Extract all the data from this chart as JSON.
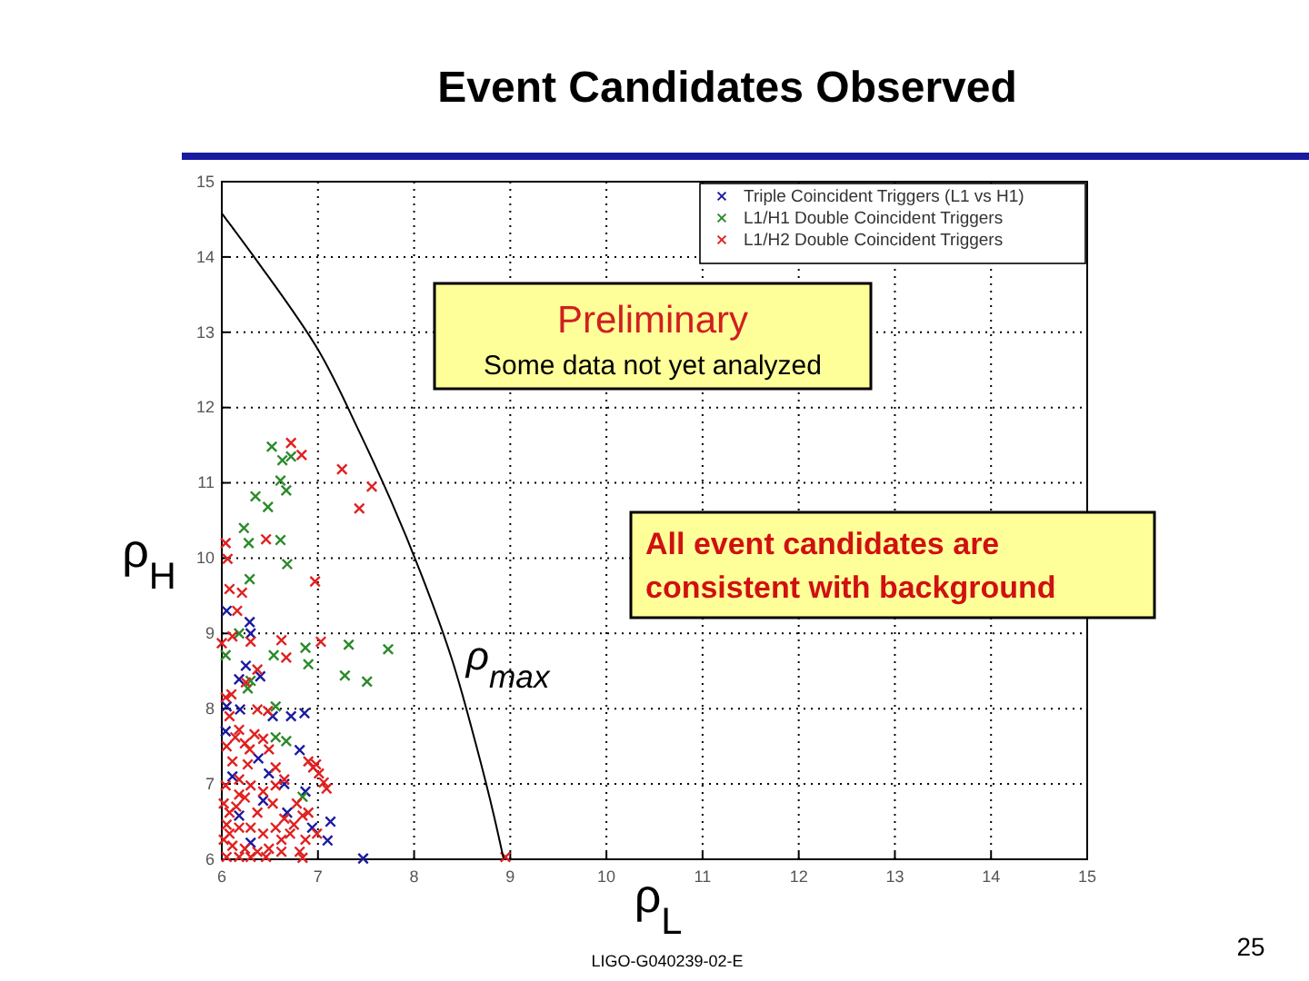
{
  "chart_data": {
    "type": "scatter",
    "title": "Event Candidates Observed",
    "xlabel": "ρ$_{L}$",
    "ylabel": "ρ$_{H}$",
    "xlim": [
      6,
      15
    ],
    "ylim": [
      6,
      15
    ],
    "xticks": [
      6,
      7,
      8,
      9,
      10,
      11,
      12,
      13,
      14,
      15
    ],
    "yticks": [
      6,
      7,
      8,
      9,
      10,
      11,
      12,
      13,
      14,
      15
    ],
    "grid": true,
    "legend": "top right",
    "marker": "cross",
    "annotations": [
      "Preliminary",
      "Some data not yet analyzed",
      "All event candidates are consistent with background",
      "LIGO-G040239-02-E",
      "25"
    ],
    "series": [
      {
        "name": "Triple Coincident Triggers (L1 vs H1)",
        "color": "#1a1aa0",
        "x": [
          6.05,
          6.29,
          6.3,
          6.25,
          6.4,
          6.18,
          6.05,
          6.19,
          6.53,
          6.72,
          6.86,
          6.04,
          6.38,
          6.81,
          6.49,
          6.87,
          7.13,
          7.47,
          7.1,
          6.18,
          6.43,
          6.3,
          6.65,
          6.11,
          6.94,
          6.68
        ],
        "values": [
          9.3,
          9.15,
          9.0,
          8.57,
          8.43,
          8.39,
          8.03,
          7.99,
          7.9,
          7.9,
          7.94,
          7.7,
          7.34,
          7.45,
          7.14,
          6.9,
          6.5,
          6.01,
          6.25,
          6.58,
          6.78,
          6.22,
          7.0,
          7.1,
          6.42,
          6.62
        ]
      },
      {
        "name": "L1/H1 Double Coincident Triggers",
        "color": "#2a8a2a",
        "x": [
          6.52,
          6.63,
          6.72,
          6.61,
          6.67,
          6.35,
          6.48,
          6.23,
          6.28,
          6.61,
          6.68,
          6.29,
          6.18,
          6.54,
          6.87,
          6.9,
          7.32,
          7.73,
          7.28,
          7.51,
          6.27,
          6.3,
          6.04,
          6.56,
          6.56,
          6.67,
          6.84
        ],
        "values": [
          11.48,
          11.3,
          11.35,
          11.03,
          10.9,
          10.82,
          10.68,
          10.4,
          10.2,
          10.24,
          9.92,
          9.72,
          9.0,
          8.71,
          8.81,
          8.59,
          8.85,
          8.79,
          8.44,
          8.36,
          8.27,
          8.37,
          8.71,
          8.03,
          7.62,
          7.57,
          6.83
        ]
      },
      {
        "name": "L1/H2 Double Coincident Triggers",
        "color": "#e02020",
        "x": [
          6.72,
          6.83,
          7.25,
          7.56,
          7.43,
          6.46,
          6.04,
          6.06,
          6.08,
          6.21,
          6.97,
          6.16,
          6.0,
          6.11,
          6.3,
          6.62,
          6.67,
          7.03,
          6.25,
          6.37,
          8.95,
          6.04,
          6.1,
          6.08,
          6.18,
          6.34,
          6.43,
          6.24,
          6.37,
          6.48,
          6.05,
          6.11,
          6.27,
          6.18,
          6.04,
          6.3,
          6.43,
          6.56,
          6.65,
          6.95,
          7.01,
          7.06,
          7.09,
          6.9,
          6.98,
          6.02,
          6.15,
          6.24,
          6.37,
          6.53,
          6.65,
          6.78,
          6.84,
          6.9,
          6.05,
          6.18,
          6.3,
          6.43,
          6.56,
          6.71,
          6.87,
          6.99,
          6.02,
          6.11,
          6.24,
          6.37,
          6.49,
          6.62,
          6.81,
          6.05,
          6.18,
          6.3,
          6.46,
          6.84,
          6.08,
          6.18,
          6.56,
          6.14,
          6.29,
          6.49,
          6.08,
          6.62,
          6.75
        ],
        "values": [
          11.53,
          11.37,
          11.18,
          10.95,
          10.66,
          10.25,
          10.2,
          9.99,
          9.59,
          9.54,
          9.69,
          9.3,
          8.87,
          8.96,
          8.89,
          8.91,
          8.68,
          8.89,
          8.35,
          8.52,
          6.03,
          8.15,
          8.19,
          7.9,
          7.72,
          7.66,
          7.6,
          7.54,
          7.99,
          7.97,
          7.5,
          7.3,
          7.26,
          7.06,
          6.98,
          6.98,
          6.9,
          7.22,
          7.06,
          7.22,
          7.14,
          7.02,
          6.94,
          7.3,
          7.26,
          6.74,
          6.7,
          6.82,
          6.62,
          6.74,
          6.54,
          6.74,
          6.58,
          6.62,
          6.46,
          6.42,
          6.42,
          6.34,
          6.42,
          6.34,
          6.26,
          6.34,
          6.26,
          6.18,
          6.14,
          6.1,
          6.14,
          6.1,
          6.1,
          6.03,
          6.03,
          6.03,
          6.03,
          6.02,
          6.62,
          6.86,
          6.98,
          7.62,
          7.46,
          7.46,
          6.34,
          6.26,
          6.46
        ]
      },
      {
        "type": "line",
        "marker": "none",
        "name": "ρ$_{max}$",
        "color": "#000000",
        "x": [
          6,
          6.37,
          7.0,
          7.44,
          7.76,
          8.07,
          8.39,
          8.64,
          8.83,
          8.93
        ],
        "values": [
          14.58,
          13.94,
          12.77,
          11.65,
          10.76,
          9.8,
          8.67,
          7.54,
          6.58,
          6.01
        ]
      }
    ]
  }
}
